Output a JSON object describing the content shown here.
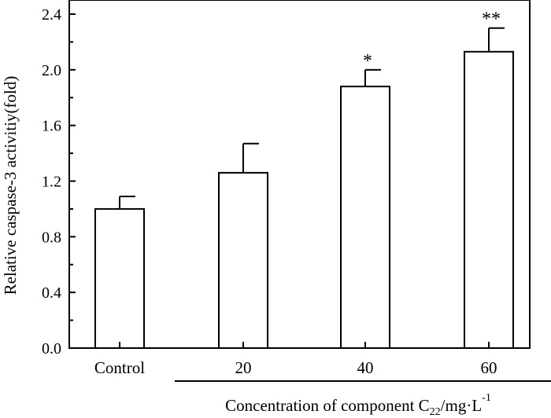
{
  "chart_data": {
    "type": "bar",
    "categories": [
      "Control",
      "20",
      "40",
      "60"
    ],
    "values": [
      1.0,
      1.26,
      1.88,
      2.13
    ],
    "error_upper": [
      0.09,
      0.21,
      0.12,
      0.17
    ],
    "significance": [
      "",
      "",
      "*",
      "**"
    ],
    "ylabel": "Relative caspase-3 activitiy(fold)",
    "xlabel": {
      "prefix": "Concentration of component C",
      "subscript": "22",
      "middle": "/mg·L",
      "superscript": "-1"
    },
    "ylim": [
      0.0,
      2.4
    ],
    "yticks": [
      "0.0",
      "0.4",
      "0.8",
      "1.2",
      "1.6",
      "2.0",
      "2.4"
    ],
    "ytick_values": [
      0.0,
      0.4,
      0.8,
      1.2,
      1.6,
      2.0,
      2.4
    ]
  }
}
